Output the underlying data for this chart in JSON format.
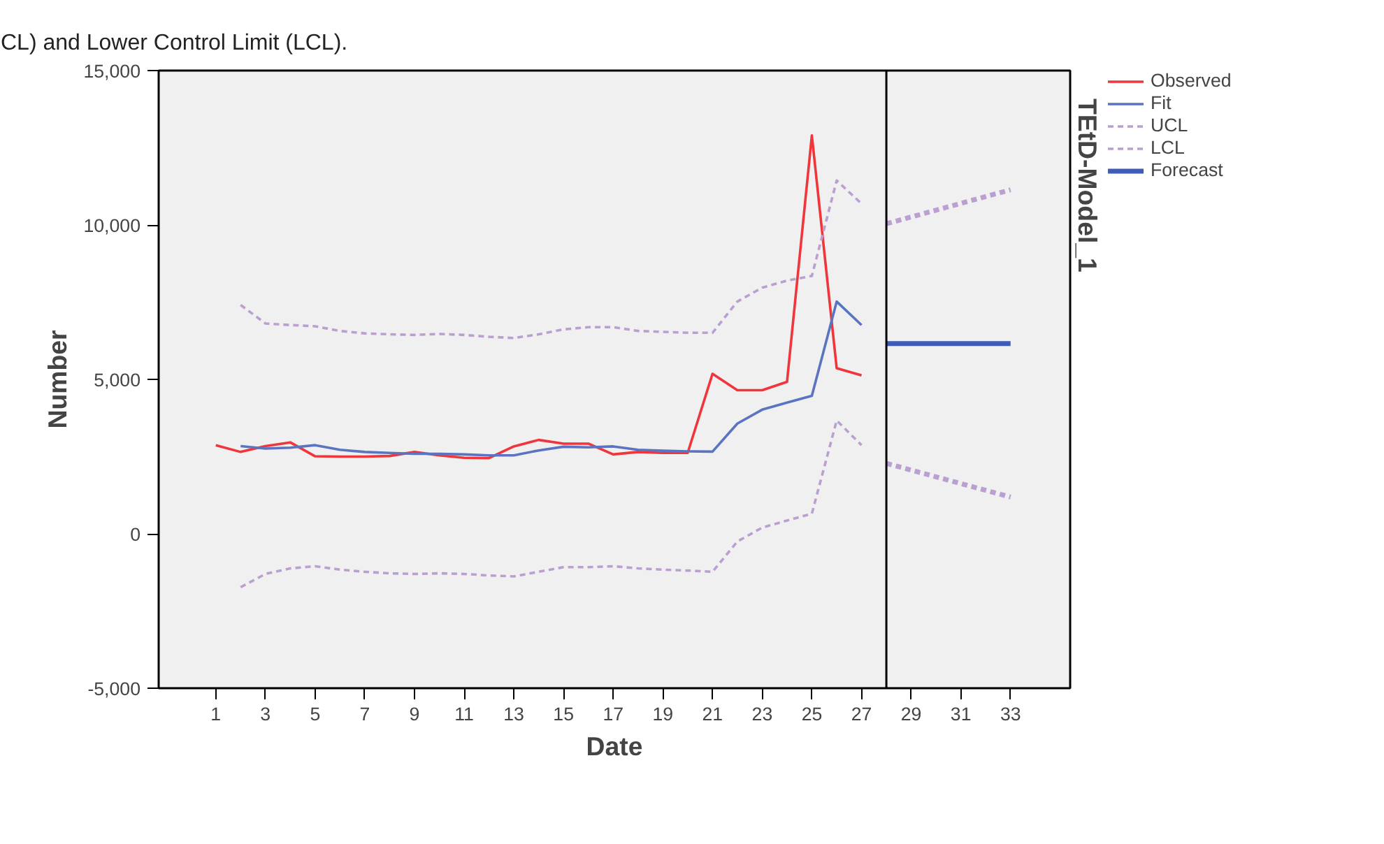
{
  "chart_data": {
    "type": "line",
    "xlabel": "Date",
    "ylabel": "Number",
    "annotations": [
      "CL) and  Lower Control Limit (LCL).",
      "TEtD-Model_1"
    ],
    "xlim": [
      -1.3,
      35.4
    ],
    "ylim": [
      -5000,
      15000
    ],
    "xticks": [
      1,
      3,
      5,
      7,
      9,
      11,
      13,
      15,
      17,
      19,
      21,
      23,
      25,
      27,
      29,
      31,
      33
    ],
    "yticks": [
      {
        "value": -5000,
        "label": "-5,000"
      },
      0,
      {
        "value": 5000,
        "label": "5,000"
      },
      {
        "value": 10000,
        "label": "10,000"
      },
      {
        "value": 15000,
        "label": "15,000"
      }
    ],
    "grid": false,
    "legend": "top right",
    "marker": "none",
    "ref_lines": [
      {
        "axis": "x",
        "value": 28,
        "label": null,
        "color": "#000000"
      }
    ],
    "series": [
      {
        "name": "Observed",
        "color": "#f0353b",
        "x": [
          1,
          2,
          3,
          4,
          5,
          6,
          7,
          8,
          9,
          10,
          11,
          12,
          13,
          14,
          15,
          16,
          17,
          18,
          19,
          20,
          21,
          22,
          23,
          24,
          25,
          26,
          27
        ],
        "values": [
          2870,
          2650,
          2840,
          2960,
          2510,
          2500,
          2500,
          2520,
          2650,
          2540,
          2460,
          2450,
          2830,
          3040,
          2920,
          2920,
          2570,
          2650,
          2620,
          2620,
          5180,
          4650,
          4650,
          4920,
          12900,
          5360,
          5130
        ]
      },
      {
        "name": "Fit",
        "color": "#5b74c2",
        "x": [
          2,
          3,
          4,
          5,
          6,
          7,
          8,
          9,
          10,
          11,
          12,
          13,
          14,
          15,
          16,
          17,
          18,
          19,
          20,
          21,
          22,
          23,
          24,
          25,
          26,
          27
        ],
        "values": [
          2840,
          2760,
          2790,
          2870,
          2720,
          2650,
          2620,
          2590,
          2590,
          2570,
          2540,
          2540,
          2700,
          2820,
          2800,
          2830,
          2720,
          2690,
          2670,
          2660,
          3570,
          4020,
          4250,
          4470,
          7520,
          6760
        ]
      },
      {
        "name": "UCL",
        "color": "#b9a0d0",
        "line_style": "dashed",
        "x": [
          2,
          3,
          4,
          5,
          6,
          7,
          8,
          9,
          10,
          11,
          12,
          13,
          14,
          15,
          16,
          17,
          18,
          19,
          20,
          21,
          22,
          23,
          24,
          25,
          26,
          27
        ],
        "values": [
          7410,
          6810,
          6760,
          6720,
          6570,
          6490,
          6460,
          6440,
          6470,
          6440,
          6380,
          6340,
          6460,
          6620,
          6690,
          6690,
          6570,
          6540,
          6510,
          6510,
          7520,
          7970,
          8200,
          8350,
          11440,
          10690
        ]
      },
      {
        "name": "LCL",
        "color": "#b9a0d0",
        "line_style": "dashed",
        "x": [
          2,
          3,
          4,
          5,
          6,
          7,
          8,
          9,
          10,
          11,
          12,
          13,
          14,
          15,
          16,
          17,
          18,
          19,
          20,
          21,
          22,
          23,
          24,
          25,
          26,
          27
        ],
        "values": [
          -1730,
          -1300,
          -1120,
          -1050,
          -1160,
          -1230,
          -1280,
          -1300,
          -1280,
          -1300,
          -1350,
          -1380,
          -1230,
          -1080,
          -1080,
          -1050,
          -1120,
          -1160,
          -1190,
          -1230,
          -250,
          200,
          430,
          650,
          3670,
          2870
        ]
      },
      {
        "name": "Forecast",
        "color": "#3f5cb8",
        "x": [
          28,
          33
        ],
        "values": [
          6160,
          6160
        ]
      },
      {
        "color": "#b9a0d0",
        "line_style": "dashed",
        "x": [
          28,
          33
        ],
        "values": [
          10040,
          11140
        ]
      },
      {
        "color": "#b9a0d0",
        "line_style": "dashed",
        "x": [
          28,
          33
        ],
        "values": [
          2280,
          1190
        ]
      }
    ]
  }
}
